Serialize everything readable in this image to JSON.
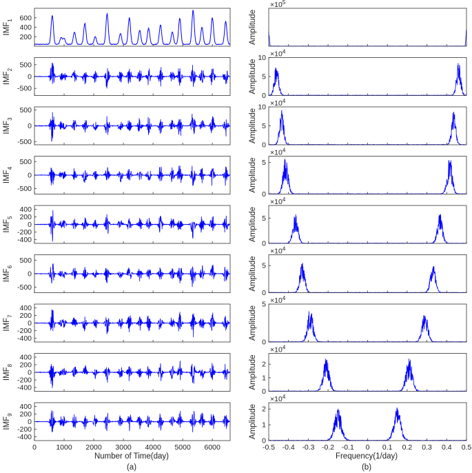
{
  "chart_data": [
    {
      "panel": "(a)",
      "type": "line",
      "xlabel": "Number of Time(day)",
      "xlim": [
        0,
        6600
      ],
      "x_ticks": [
        "0",
        "1000",
        "2000",
        "3000",
        "4000",
        "5000",
        "6000"
      ],
      "caption": "(a)",
      "series_color": "#0000ff",
      "rows": [
        {
          "name": "IMF",
          "sub": "1",
          "ylim": [
            0,
            800
          ],
          "y_ticks": [
            {
              "v": 600,
              "t": "600"
            },
            {
              "v": 400,
              "t": "400"
            },
            {
              "v": 200,
              "t": "200"
            }
          ],
          "peaks": [
            {
              "x": 600,
              "y": 650
            },
            {
              "x": 900,
              "y": 180
            },
            {
              "x": 1000,
              "y": 160
            },
            {
              "x": 1350,
              "y": 300
            },
            {
              "x": 1700,
              "y": 480
            },
            {
              "x": 2050,
              "y": 200
            },
            {
              "x": 2450,
              "y": 680
            },
            {
              "x": 2900,
              "y": 270
            },
            {
              "x": 3200,
              "y": 600
            },
            {
              "x": 3550,
              "y": 330
            },
            {
              "x": 3850,
              "y": 380
            },
            {
              "x": 4250,
              "y": 450
            },
            {
              "x": 4650,
              "y": 300
            },
            {
              "x": 4900,
              "y": 590
            },
            {
              "x": 5350,
              "y": 760
            },
            {
              "x": 5650,
              "y": 400
            },
            {
              "x": 6000,
              "y": 600
            },
            {
              "x": 6450,
              "y": 520
            }
          ]
        },
        {
          "name": "IMF",
          "sub": "2",
          "ylim": [
            -800,
            800
          ],
          "y_ticks": [
            {
              "v": 500,
              "t": "500"
            },
            {
              "v": 0,
              "t": "0"
            },
            {
              "v": -500,
              "t": "-500"
            }
          ],
          "amp": 780
        },
        {
          "name": "IMF",
          "sub": "3",
          "ylim": [
            -600,
            600
          ],
          "y_ticks": [
            {
              "v": 500,
              "t": "500"
            },
            {
              "v": 0,
              "t": "0"
            },
            {
              "v": -500,
              "t": "-500"
            }
          ],
          "amp": 580
        },
        {
          "name": "IMF",
          "sub": "4",
          "ylim": [
            -700,
            700
          ],
          "y_ticks": [
            {
              "v": 500,
              "t": "500"
            },
            {
              "v": 0,
              "t": "0"
            },
            {
              "v": -500,
              "t": "-500"
            }
          ],
          "amp": 650
        },
        {
          "name": "IMF",
          "sub": "5",
          "ylim": [
            -500,
            500
          ],
          "y_ticks": [
            {
              "v": 400,
              "t": "400"
            },
            {
              "v": 200,
              "t": "200"
            },
            {
              "v": 0,
              "t": "0"
            },
            {
              "v": -200,
              "t": "-200"
            },
            {
              "v": -400,
              "t": "-400"
            }
          ],
          "amp": 480
        },
        {
          "name": "IMF",
          "sub": "6",
          "ylim": [
            -700,
            700
          ],
          "y_ticks": [
            {
              "v": 500,
              "t": "500"
            },
            {
              "v": 0,
              "t": "0"
            },
            {
              "v": -500,
              "t": "-500"
            }
          ],
          "amp": 650
        },
        {
          "name": "IMF",
          "sub": "7",
          "ylim": [
            -500,
            500
          ],
          "y_ticks": [
            {
              "v": 400,
              "t": "400"
            },
            {
              "v": 200,
              "t": "200"
            },
            {
              "v": 0,
              "t": "0"
            },
            {
              "v": -200,
              "t": "-200"
            },
            {
              "v": -400,
              "t": "-400"
            }
          ],
          "amp": 480
        },
        {
          "name": "IMF",
          "sub": "8",
          "ylim": [
            -500,
            500
          ],
          "y_ticks": [
            {
              "v": 400,
              "t": "400"
            },
            {
              "v": 200,
              "t": "200"
            },
            {
              "v": 0,
              "t": "0"
            },
            {
              "v": -200,
              "t": "-200"
            },
            {
              "v": -400,
              "t": "-400"
            }
          ],
          "amp": 480
        },
        {
          "name": "IMF",
          "sub": "9",
          "ylim": [
            -500,
            500
          ],
          "y_ticks": [
            {
              "v": 400,
              "t": "400"
            },
            {
              "v": 200,
              "t": "200"
            },
            {
              "v": 0,
              "t": "0"
            },
            {
              "v": -200,
              "t": "-200"
            },
            {
              "v": -400,
              "t": "-400"
            }
          ],
          "amp": 490
        }
      ],
      "burst_centers": [
        600,
        900,
        1000,
        1350,
        1700,
        2050,
        2450,
        2900,
        3200,
        3550,
        3850,
        4250,
        4650,
        4900,
        5350,
        5650,
        6000,
        6450
      ],
      "burst_weights": [
        1.0,
        0.3,
        0.35,
        0.45,
        0.55,
        0.4,
        0.75,
        0.45,
        0.6,
        0.5,
        0.55,
        0.6,
        0.5,
        0.75,
        0.95,
        0.6,
        0.7,
        0.65
      ]
    },
    {
      "panel": "(b)",
      "type": "line",
      "xlabel": "Frequency(1/day)",
      "xlim": [
        -0.5,
        0.5
      ],
      "x_ticks": [
        "-0.5",
        "-0.4",
        "-0.3",
        "-0.2",
        "-0.1",
        "0",
        "0.1",
        "0.2",
        "0.3",
        "0.4",
        "0.5"
      ],
      "caption": "(b)",
      "ylabel": "Amplitude",
      "series_color": "#0000ff",
      "rows": [
        {
          "exp": "×10",
          "pow": "5",
          "ylim": [
            0,
            10
          ],
          "y_ticks": [],
          "peak_f": 0.5,
          "peak_amp": 5,
          "width": 0.004
        },
        {
          "exp": "×10",
          "pow": "4",
          "ylim": [
            0,
            10
          ],
          "y_ticks": [
            {
              "v": 10,
              "t": "10"
            },
            {
              "v": 5,
              "t": "5"
            },
            {
              "v": 0,
              "t": "0"
            }
          ],
          "peak_f": 0.46,
          "peak_amp": 9.5,
          "width": 0.015
        },
        {
          "exp": "×10",
          "pow": "4",
          "ylim": [
            0,
            10
          ],
          "y_ticks": [
            {
              "v": 10,
              "t": "10"
            },
            {
              "v": 5,
              "t": "5"
            },
            {
              "v": 0,
              "t": "0"
            }
          ],
          "peak_f": 0.435,
          "peak_amp": 9.5,
          "width": 0.015
        },
        {
          "exp": "×10",
          "pow": "4",
          "ylim": [
            0,
            6
          ],
          "y_ticks": [
            {
              "v": 5,
              "t": "5"
            },
            {
              "v": 0,
              "t": "0"
            }
          ],
          "peak_f": 0.415,
          "peak_amp": 6,
          "width": 0.018
        },
        {
          "exp": "×10",
          "pow": "4",
          "ylim": [
            0,
            7.5
          ],
          "y_ticks": [
            {
              "v": 5,
              "t": "5"
            },
            {
              "v": 0,
              "t": "0"
            }
          ],
          "peak_f": 0.365,
          "peak_amp": 6.2,
          "width": 0.018
        },
        {
          "exp": "×10",
          "pow": "4",
          "ylim": [
            0,
            7
          ],
          "y_ticks": [
            {
              "v": 5,
              "t": "5"
            },
            {
              "v": 0,
              "t": "0"
            }
          ],
          "peak_f": 0.33,
          "peak_amp": 5.8,
          "width": 0.018
        },
        {
          "exp": "×10",
          "pow": "4",
          "ylim": [
            0,
            5
          ],
          "y_ticks": [
            {
              "v": 5,
              "t": "5"
            },
            {
              "v": 0,
              "t": "0"
            }
          ],
          "peak_f": 0.29,
          "peak_amp": 4.7,
          "width": 0.02
        },
        {
          "exp": "×10",
          "pow": "4",
          "ylim": [
            0,
            2.8
          ],
          "y_ticks": [
            {
              "v": 2,
              "t": "2"
            },
            {
              "v": 1,
              "t": "1"
            },
            {
              "v": 0,
              "t": "0"
            }
          ],
          "peak_f": 0.21,
          "peak_amp": 2.5,
          "width": 0.022
        },
        {
          "exp": "×10",
          "pow": "4",
          "ylim": [
            0,
            2.4
          ],
          "y_ticks": [
            {
              "v": 2,
              "t": "2"
            },
            {
              "v": 1,
              "t": "1"
            },
            {
              "v": 0,
              "t": "0"
            }
          ],
          "peak_f": 0.15,
          "peak_amp": 2.2,
          "width": 0.025
        }
      ]
    }
  ]
}
